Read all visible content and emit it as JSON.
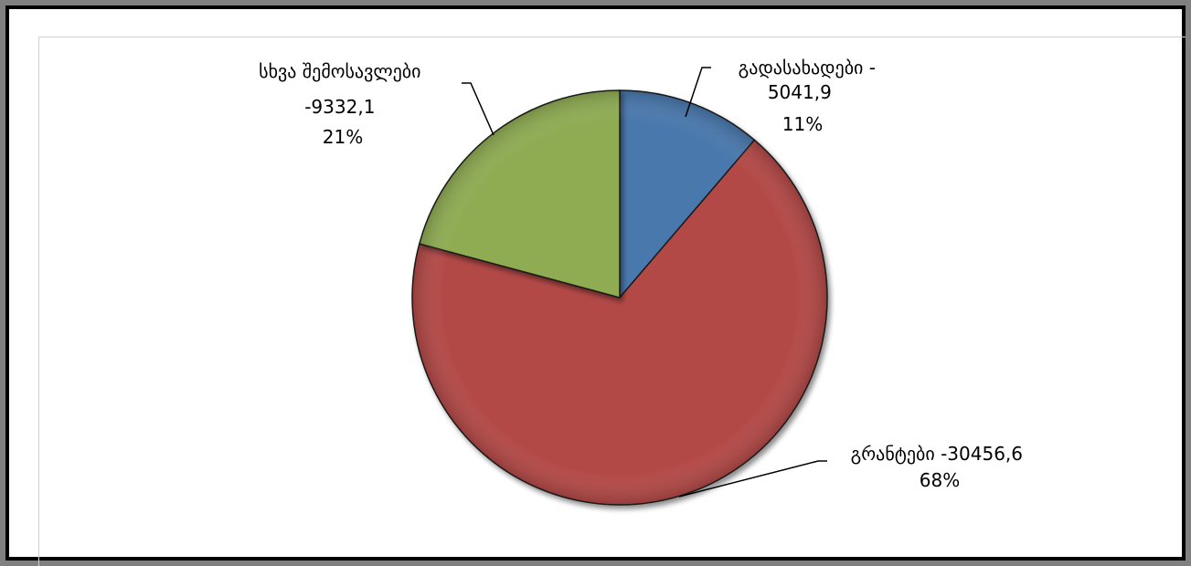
{
  "chart_data": {
    "type": "pie",
    "title": "",
    "slices": [
      {
        "label": "გადასახადები",
        "value": 5041.9,
        "percent": 11,
        "color": "#4a78ad"
      },
      {
        "label": "გრანტები",
        "value": 30456.6,
        "percent": 68,
        "color": "#b34a47"
      },
      {
        "label": "სხვა შემოსავლები",
        "value": 9332.1,
        "percent": 21,
        "color": "#8fac52"
      }
    ],
    "data_labels": [
      {
        "line1": "გადასახადები -",
        "line2": "5041,9",
        "line3": "11%"
      },
      {
        "line1": "გრანტები -30456,6",
        "line2": "68%"
      },
      {
        "line1": "სხვა შემოსავლები",
        "line2": "-9332,1",
        "line3": "21%"
      }
    ],
    "legend": "none",
    "start_angle": "12 o'clock, clockwise"
  }
}
